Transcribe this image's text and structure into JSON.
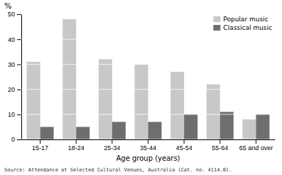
{
  "chart_data": {
    "type": "bar",
    "categories": [
      "15-17",
      "18-24",
      "25-34",
      "35-44",
      "45-54",
      "55-64",
      "65 and over"
    ],
    "series": [
      {
        "name": "Popular music",
        "color": "#c8c8c8",
        "values": [
          31,
          48,
          32,
          30,
          27,
          22,
          8
        ]
      },
      {
        "name": "Classical music",
        "color": "#6e6e6e",
        "values": [
          5,
          5,
          7,
          7,
          10,
          11,
          10
        ]
      }
    ],
    "y_label": "%",
    "x_label": "Age group (years)",
    "ylim": [
      0,
      50
    ],
    "yticks": [
      0,
      10,
      20,
      30,
      40,
      50
    ],
    "grid": true,
    "legend": "upper right",
    "annotations": [
      "Source: Attendance at Selected Cultural Venues, Australia (Cat. no.  4114.0)."
    ]
  }
}
